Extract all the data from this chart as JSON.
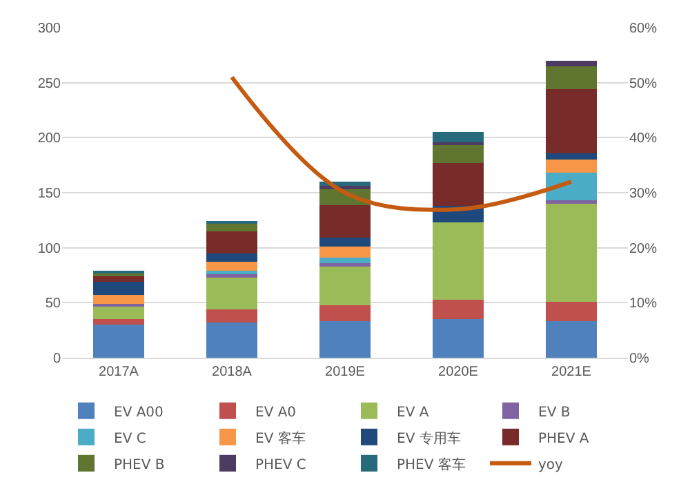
{
  "chart_data": {
    "type": "bar",
    "stacked": true,
    "categories": [
      "2017A",
      "2018A",
      "2019E",
      "2020E",
      "2021E"
    ],
    "series": [
      {
        "name": "EV A00",
        "color": "#4f81bd",
        "values": [
          30,
          32,
          33,
          35,
          33
        ]
      },
      {
        "name": "EV A0",
        "color": "#c0504d",
        "values": [
          5,
          12,
          15,
          18,
          18
        ]
      },
      {
        "name": "EV A",
        "color": "#9bbb59",
        "values": [
          12,
          30,
          35,
          70,
          89
        ]
      },
      {
        "name": "EV B",
        "color": "#8064a2",
        "values": [
          2,
          2,
          3,
          0,
          3
        ]
      },
      {
        "name": "EV C",
        "color": "#4bacc6",
        "values": [
          0,
          3,
          5,
          0,
          25
        ]
      },
      {
        "name": "EV 客车",
        "color": "#f79646",
        "values": [
          8,
          8,
          10,
          0,
          12
        ]
      },
      {
        "name": "EV 专用车",
        "color": "#1f497d",
        "values": [
          12,
          8,
          8,
          15,
          6
        ]
      },
      {
        "name": "PHEV A",
        "color": "#772c2a",
        "values": [
          5,
          20,
          30,
          39,
          58
        ]
      },
      {
        "name": "PHEV B",
        "color": "#5f7530",
        "values": [
          3,
          7,
          15,
          16,
          21
        ]
      },
      {
        "name": "PHEV C",
        "color": "#4d3b62",
        "values": [
          0,
          1,
          2,
          3,
          5
        ]
      },
      {
        "name": "PHEV 客车",
        "color": "#276a7c",
        "values": [
          2,
          1,
          4,
          9,
          0
        ]
      },
      {
        "name": "yoy",
        "type": "line",
        "axis": "y2",
        "color": "#c55a11",
        "values": [
          null,
          51,
          30,
          27,
          32
        ]
      }
    ],
    "ylim": [
      0,
      300
    ],
    "yticks": [
      0,
      50,
      100,
      150,
      200,
      250,
      300
    ],
    "y2lim": [
      0,
      60
    ],
    "y2ticks": [
      {
        "value": 0,
        "label": "0%"
      },
      {
        "value": 10,
        "label": "10%"
      },
      {
        "value": 20,
        "label": "20%"
      },
      {
        "value": 30,
        "label": "30%"
      },
      {
        "value": 40,
        "label": "40%"
      },
      {
        "value": 50,
        "label": "50%"
      },
      {
        "value": 60,
        "label": "60%"
      }
    ],
    "grid": "y",
    "legend": "bottom",
    "marker": "none",
    "line_style": "solid"
  }
}
